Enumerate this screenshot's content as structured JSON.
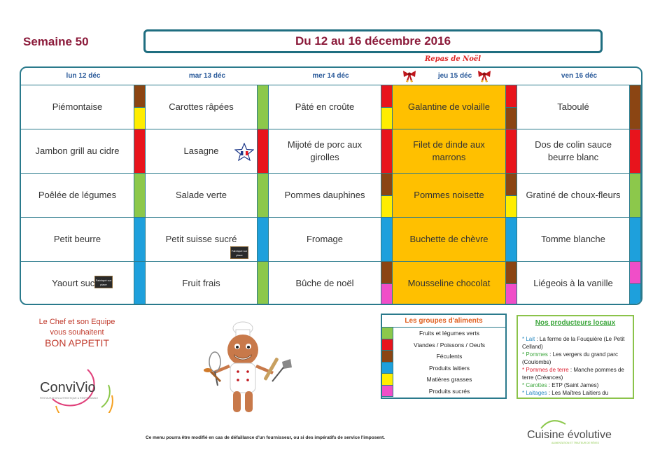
{
  "header": {
    "week": "Semaine 50",
    "dates": "Du 12 au 16 décembre 2016",
    "special": "Repas de Noël"
  },
  "days": [
    "lun 12 déc",
    "mar 13 déc",
    "mer 14 déc",
    "jeu 15 déc",
    "ven 16 déc"
  ],
  "menu": [
    [
      "Piémontaise",
      "Jambon grill au cidre",
      "Poêlée de légumes",
      "Petit beurre",
      "Yaourt sucré"
    ],
    [
      "Carottes râpées",
      "Lasagne",
      "Salade verte",
      "Petit suisse sucré",
      "Fruit frais"
    ],
    [
      "Pâté en croûte",
      "Mijoté de porc aux girolles",
      "Pommes dauphines",
      "Fromage",
      "Bûche de noël"
    ],
    [
      "Galantine de volaille",
      "Filet de dinde aux marrons",
      "Pommes noisette",
      "Buchette de chèvre",
      "Mousseline chocolat"
    ],
    [
      "Taboulé",
      "Dos de colin sauce beurre blanc",
      "Gratiné de choux-fleurs",
      "Tomme blanche",
      "Liégeois à la vanille"
    ]
  ],
  "colors": {
    "green": "#8cc84b",
    "red": "#e8141c",
    "brown": "#8b4513",
    "blue": "#1ea0dc",
    "yellow": "#ffed00",
    "pink": "#f04ec8",
    "orange": "#ffc000"
  },
  "strips": [
    [
      [
        "brown",
        "yellow"
      ],
      [
        "red"
      ],
      [
        "green"
      ],
      [
        "blue"
      ],
      [
        "blue"
      ]
    ],
    [
      [
        "green"
      ],
      [
        "red"
      ],
      [
        "green"
      ],
      [
        "blue"
      ],
      [
        "green"
      ]
    ],
    [
      [
        "red",
        "yellow"
      ],
      [
        "red"
      ],
      [
        "brown",
        "yellow"
      ],
      [
        "blue"
      ],
      [
        "brown",
        "pink"
      ]
    ],
    [
      [
        "red",
        "brown"
      ],
      [
        "red"
      ],
      [
        "brown",
        "yellow"
      ],
      [
        "blue"
      ],
      [
        "brown",
        "pink"
      ]
    ],
    [
      [
        "brown"
      ],
      [
        "red"
      ],
      [
        "green"
      ],
      [
        "blue"
      ],
      [
        "pink",
        "blue"
      ]
    ]
  ],
  "wish": {
    "line1": "Le Chef et son Equipe",
    "line2": "vous souhaitent",
    "line3": "BON APPETIT"
  },
  "logos": {
    "convivio": "ConviVio",
    "convivio_sub": "RESTAURATION AUTHENTIQUE & RESPONSABLE",
    "evolutive": "Cuisine évolutive",
    "evolutive_sub": "ALIMENTATION ET TRAITEUR DE RÊVES"
  },
  "groups": {
    "title": "Les groupes d'aliments",
    "items": [
      {
        "color": "green",
        "label": "Fruits et légumes verts"
      },
      {
        "color": "red",
        "label": "Viandes / Poissons / Oeufs"
      },
      {
        "color": "brown",
        "label": "Féculents"
      },
      {
        "color": "blue",
        "label": "Produits laitiers"
      },
      {
        "color": "yellow",
        "label": "Matières grasses"
      },
      {
        "color": "pink",
        "label": "Produits sucrés"
      }
    ]
  },
  "producers": {
    "title": "Nos producteurs locaux",
    "items": [
      {
        "key": "Lait",
        "text": " : La ferme de la Fouquière (Le Petit Celland)"
      },
      {
        "key": "Pommes",
        "text": " : Les vergers du grand parc (Coulombs)"
      },
      {
        "key": "Pommes de terre",
        "text": " : Manche pommes de terre (Créances)"
      },
      {
        "key": "Carottes",
        "text": " : ETP (Saint James)"
      },
      {
        "key": "Laitages",
        "text": " : Les Maîtres Laitiers du"
      }
    ]
  },
  "badges": {
    "made": "Produit du terroir",
    "chalk": "Fabriqué sur place"
  },
  "disclaimer": "Ce menu pourra être modifié en cas de défaillance d'un fournisseur, ou si des impératifs de service l'imposent."
}
